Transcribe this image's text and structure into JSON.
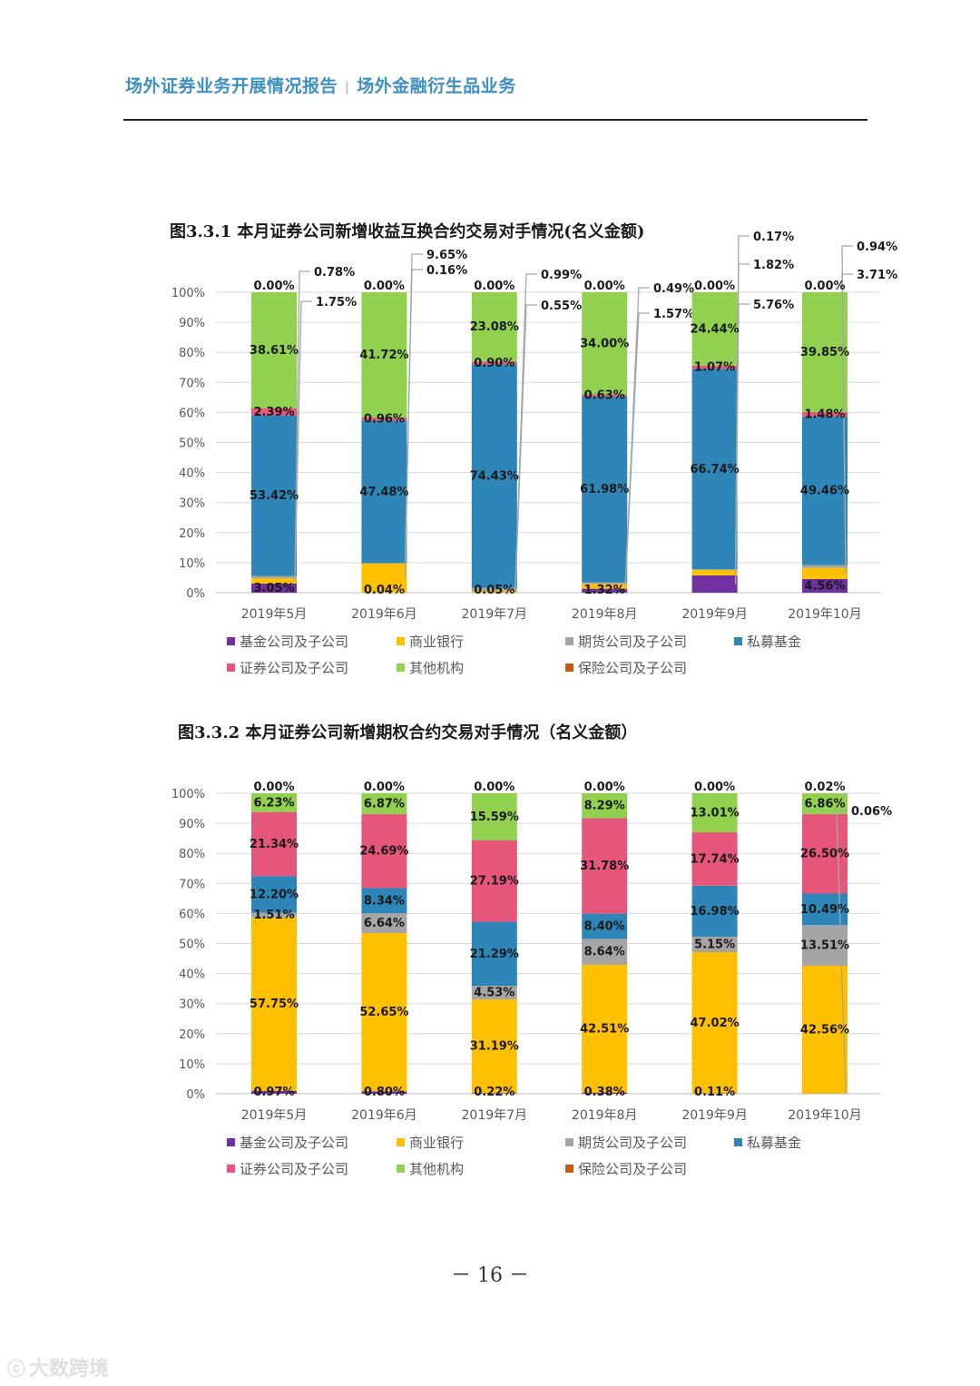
{
  "header": {
    "left": "场外证券业务开展情况报告",
    "separator": "|",
    "right": "场外金融衍生品业务"
  },
  "page_number": "－ 16 －",
  "watermark": "大数跨境",
  "colors": {
    "基金公司及子公司": "#7030a0",
    "商业银行": "#ffc000",
    "期货公司及子公司": "#a5a5a5",
    "私募基金": "#2e86b8",
    "证券公司及子公司": "#e6557a",
    "其他机构": "#92d050",
    "保险公司及子公司": "#c55a11"
  },
  "chart_data": [
    {
      "type": "bar",
      "stacked": true,
      "title": "图3.3.1 本月证券公司新增收益互换合约交易对手情况(名义金额)",
      "categories": [
        "2019年5月",
        "2019年6月",
        "2019年7月",
        "2019年8月",
        "2019年9月",
        "2019年10月"
      ],
      "y_ticks": [
        "0%",
        "10%",
        "20%",
        "30%",
        "40%",
        "50%",
        "60%",
        "70%",
        "80%",
        "90%",
        "100%"
      ],
      "ylim": [
        0,
        100
      ],
      "legend_order": [
        "基金公司及子公司",
        "商业银行",
        "期货公司及子公司",
        "私募基金",
        "证券公司及子公司",
        "其他机构",
        "保险公司及子公司"
      ],
      "series": [
        {
          "name": "基金公司及子公司",
          "values": [
            3.05,
            0.04,
            0.05,
            1.32,
            5.76,
            4.56
          ],
          "labels": [
            "3.05%",
            "0.04%",
            "0.05%",
            "1.32%",
            "5.76%",
            "4.56%"
          ]
        },
        {
          "name": "商业银行",
          "values": [
            1.75,
            9.65,
            0.55,
            1.57,
            1.82,
            3.71
          ],
          "labels": [
            "1.75%",
            "9.65%",
            "0.55%",
            "1.57%",
            "1.82%",
            "3.71%"
          ]
        },
        {
          "name": "期货公司及子公司",
          "values": [
            0.78,
            0.16,
            0.99,
            0.49,
            0.17,
            0.94
          ],
          "labels": [
            "0.78%",
            "0.16%",
            "0.99%",
            "0.49%",
            "0.17%",
            "0.94%"
          ]
        },
        {
          "name": "私募基金",
          "values": [
            53.42,
            47.48,
            74.43,
            61.98,
            66.74,
            49.46
          ],
          "labels": [
            "53.42%",
            "47.48%",
            "74.43%",
            "61.98%",
            "66.74%",
            "49.46%"
          ]
        },
        {
          "name": "证券公司及子公司",
          "values": [
            2.39,
            0.96,
            0.9,
            0.63,
            1.07,
            1.48
          ],
          "labels": [
            "2.39%",
            "0.96%",
            "0.90%",
            "0.63%",
            "1.07%",
            "1.48%"
          ]
        },
        {
          "name": "其他机构",
          "values": [
            38.61,
            41.72,
            23.08,
            34.0,
            24.44,
            39.85
          ],
          "labels": [
            "38.61%",
            "41.72%",
            "23.08%",
            "34.00%",
            "24.44%",
            "39.85%"
          ]
        },
        {
          "name": "保险公司及子公司",
          "values": [
            0.0,
            0.0,
            0.0,
            0.0,
            0.0,
            0.0
          ],
          "labels": [
            "0.00%",
            "0.00%",
            "0.00%",
            "0.00%",
            "0.00%",
            "0.00%"
          ]
        }
      ]
    },
    {
      "type": "bar",
      "stacked": true,
      "title": "图3.3.2 本月证券公司新增期权合约交易对手情况（名义金额）",
      "categories": [
        "2019年5月",
        "2019年6月",
        "2019年7月",
        "2019年8月",
        "2019年9月",
        "2019年10月"
      ],
      "y_ticks": [
        "0%",
        "10%",
        "20%",
        "30%",
        "40%",
        "50%",
        "60%",
        "70%",
        "80%",
        "90%",
        "100%"
      ],
      "ylim": [
        0,
        100
      ],
      "legend_order": [
        "基金公司及子公司",
        "商业银行",
        "期货公司及子公司",
        "私募基金",
        "证券公司及子公司",
        "其他机构",
        "保险公司及子公司"
      ],
      "series": [
        {
          "name": "基金公司及子公司",
          "values": [
            0.97,
            0.8,
            0.22,
            0.38,
            0.11,
            0.06
          ],
          "labels": [
            "0.97%",
            "0.80%",
            "0.22%",
            "0.38%",
            "0.11%",
            "0.06%"
          ]
        },
        {
          "name": "商业银行",
          "values": [
            57.75,
            52.65,
            31.19,
            42.51,
            47.02,
            42.56
          ],
          "labels": [
            "57.75%",
            "52.65%",
            "31.19%",
            "42.51%",
            "47.02%",
            "42.56%"
          ]
        },
        {
          "name": "期货公司及子公司",
          "values": [
            1.51,
            6.64,
            4.53,
            8.64,
            5.15,
            13.51
          ],
          "labels": [
            "1.51%",
            "6.64%",
            "4.53%",
            "8.64%",
            "5.15%",
            "13.51%"
          ]
        },
        {
          "name": "私募基金",
          "values": [
            12.2,
            8.34,
            21.29,
            8.4,
            16.98,
            10.49
          ],
          "labels": [
            "12.20%",
            "8.34%",
            "21.29%",
            "8.40%",
            "16.98%",
            "10.49%"
          ]
        },
        {
          "name": "证券公司及子公司",
          "values": [
            21.34,
            24.69,
            27.19,
            31.78,
            17.74,
            26.5
          ],
          "labels": [
            "21.34%",
            "24.69%",
            "27.19%",
            "31.78%",
            "17.74%",
            "26.50%"
          ]
        },
        {
          "name": "其他机构",
          "values": [
            6.23,
            6.87,
            15.59,
            8.29,
            13.01,
            6.86
          ],
          "labels": [
            "6.23%",
            "6.87%",
            "15.59%",
            "8.29%",
            "13.01%",
            "6.86%"
          ]
        },
        {
          "name": "保险公司及子公司",
          "values": [
            0.0,
            0.0,
            0.0,
            0.0,
            0.0,
            0.02
          ],
          "labels": [
            "0.00%",
            "0.00%",
            "0.00%",
            "0.00%",
            "0.00%",
            "0.02%"
          ]
        }
      ]
    }
  ]
}
